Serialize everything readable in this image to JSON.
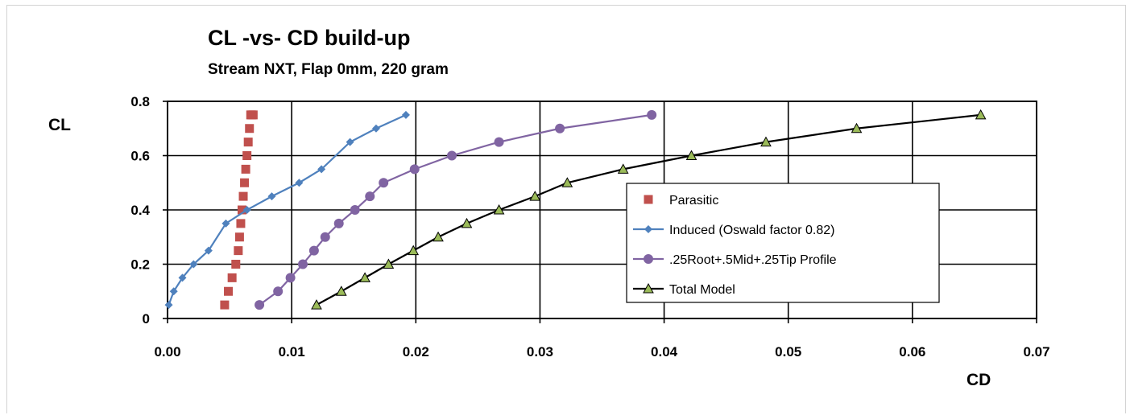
{
  "chart_data": {
    "type": "line",
    "title": "CL -vs- CD build-up",
    "subtitle": "Stream NXT, Flap 0mm, 220 gram",
    "xlabel": "CD",
    "ylabel": "CL",
    "xlim": [
      0,
      0.07
    ],
    "ylim": [
      0,
      0.8
    ],
    "x_ticks": [
      "0.00",
      "0.01",
      "0.02",
      "0.03",
      "0.04",
      "0.05",
      "0.06",
      "0.07"
    ],
    "x_tick_values": [
      0,
      0.01,
      0.02,
      0.03,
      0.04,
      0.05,
      0.06,
      0.07
    ],
    "y_ticks": [
      "0",
      "0.2",
      "0.4",
      "0.6",
      "0.8"
    ],
    "y_tick_values": [
      0,
      0.2,
      0.4,
      0.6,
      0.8
    ],
    "grid": true,
    "legend_position": "bottom-right",
    "series": [
      {
        "name": "Parasitic",
        "color": "#c0504d",
        "marker": "square",
        "line": false,
        "x": [
          0.0046,
          0.0049,
          0.0052,
          0.0055,
          0.0057,
          0.0058,
          0.0059,
          0.006,
          0.0061,
          0.0062,
          0.0063,
          0.0064,
          0.0065,
          0.0066,
          0.0067,
          0.0068,
          0.0069
        ],
        "y": [
          0.05,
          0.1,
          0.15,
          0.2,
          0.25,
          0.3,
          0.35,
          0.4,
          0.45,
          0.5,
          0.55,
          0.6,
          0.65,
          0.7,
          0.75,
          0.75,
          0.75
        ]
      },
      {
        "name": "Induced (Oswald factor 0.82)",
        "color": "#4f81bd",
        "marker": "diamond",
        "line": true,
        "x": [
          0.0001,
          0.0005,
          0.0012,
          0.0021,
          0.0033,
          0.0047,
          0.0064,
          0.0084,
          0.0106,
          0.0124,
          0.0147,
          0.0168,
          0.0192
        ],
        "y": [
          0.05,
          0.1,
          0.15,
          0.2,
          0.25,
          0.35,
          0.4,
          0.45,
          0.5,
          0.55,
          0.65,
          0.7,
          0.75
        ]
      },
      {
        "name": ".25Root+.5Mid+.25Tip Profile",
        "color": "#8064a2",
        "marker": "circle",
        "line": true,
        "x": [
          0.0074,
          0.0089,
          0.0099,
          0.0109,
          0.0118,
          0.0127,
          0.0138,
          0.0151,
          0.0163,
          0.0174,
          0.0199,
          0.0229,
          0.0267,
          0.0316,
          0.039
        ],
        "y": [
          0.05,
          0.1,
          0.15,
          0.2,
          0.25,
          0.3,
          0.35,
          0.4,
          0.45,
          0.5,
          0.55,
          0.6,
          0.65,
          0.7,
          0.75
        ]
      },
      {
        "name": "Total Model",
        "color": "#000000",
        "marker": "triangle",
        "marker_fill": "#9bbb59",
        "line": true,
        "x": [
          0.012,
          0.014,
          0.0159,
          0.0178,
          0.0198,
          0.0218,
          0.0241,
          0.0267,
          0.0296,
          0.0322,
          0.0367,
          0.0422,
          0.0482,
          0.0555,
          0.0655
        ],
        "y": [
          0.05,
          0.1,
          0.15,
          0.2,
          0.25,
          0.3,
          0.35,
          0.4,
          0.45,
          0.5,
          0.55,
          0.6,
          0.65,
          0.7,
          0.75
        ]
      }
    ]
  }
}
